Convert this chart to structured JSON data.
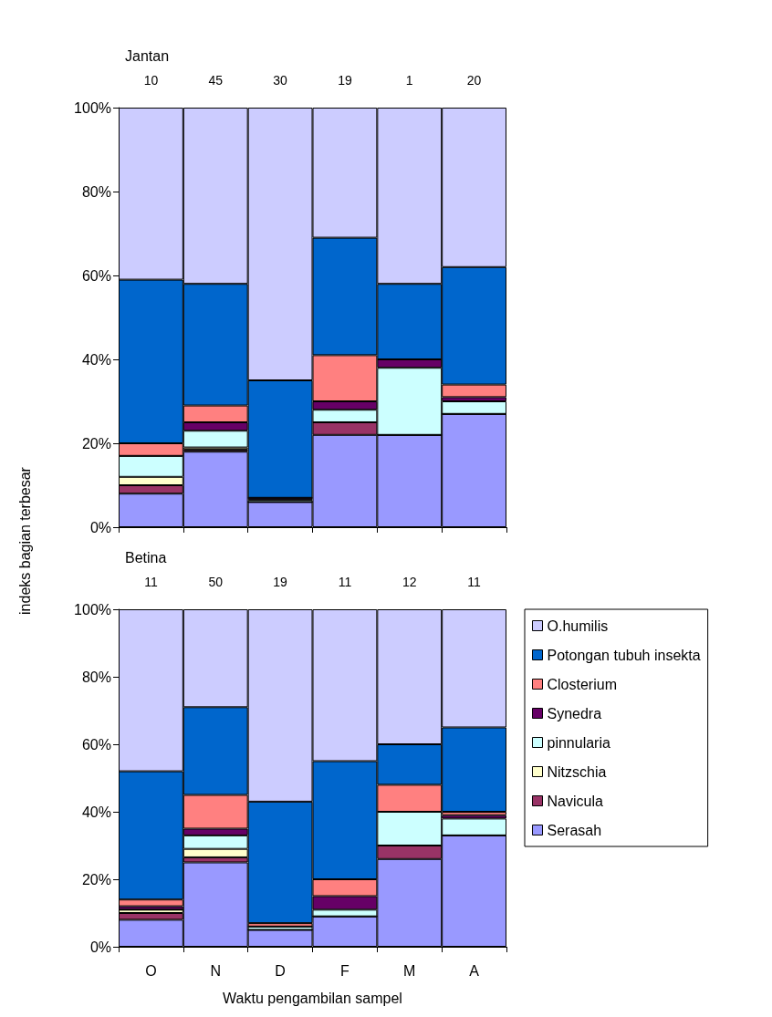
{
  "chart_data": [
    {
      "type": "bar",
      "title": "Jantan",
      "stacked": true,
      "grid": false,
      "legend": false,
      "tick_labels": "y",
      "categories": [
        null,
        null,
        null,
        null,
        null,
        null
      ],
      "ylim": [
        0,
        100
      ],
      "yticks": [
        {
          "value": 0,
          "label": "0%"
        },
        {
          "value": 20,
          "label": "20%"
        },
        {
          "value": 40,
          "label": "40%"
        },
        {
          "value": 60,
          "label": "60%"
        },
        {
          "value": 80,
          "label": "80%"
        },
        {
          "value": 100,
          "label": "100%"
        }
      ],
      "annotations": [
        "10",
        "45",
        "30",
        "19",
        "1",
        "20"
      ],
      "series": [
        {
          "color": "#9999ff",
          "values": [
            8,
            18,
            6,
            22,
            22,
            27
          ]
        },
        {
          "color": "#993366",
          "values": [
            2,
            0.5,
            0,
            3,
            0,
            0
          ]
        },
        {
          "color": "#ffffcc",
          "values": [
            2,
            0.5,
            0,
            0,
            0,
            0
          ]
        },
        {
          "color": "#ccffff",
          "values": [
            5,
            4,
            0.5,
            3,
            16,
            3
          ]
        },
        {
          "color": "#660066",
          "values": [
            0,
            2,
            0.5,
            2,
            2,
            1
          ]
        },
        {
          "color": "#ff8080",
          "values": [
            3,
            4,
            0,
            11,
            0,
            3
          ]
        },
        {
          "color": "#0066cc",
          "values": [
            39,
            29,
            28,
            28,
            18,
            28
          ]
        },
        {
          "color": "#ccccff",
          "values": [
            41,
            42,
            65,
            31,
            42,
            38
          ]
        }
      ]
    },
    {
      "type": "bar",
      "title": "Betina",
      "stacked": true,
      "grid": false,
      "legend": "right",
      "xlabel": "Waktu pengambilan sampel",
      "ylabel": "indeks bagian terbesar",
      "categories": [
        "O",
        "N",
        "D",
        "F",
        "M",
        "A"
      ],
      "ylim": [
        0,
        100
      ],
      "yticks": [
        {
          "value": 0,
          "label": "0%"
        },
        {
          "value": 20,
          "label": "20%"
        },
        {
          "value": 40,
          "label": "40%"
        },
        {
          "value": 60,
          "label": "60%"
        },
        {
          "value": 80,
          "label": "80%"
        },
        {
          "value": 100,
          "label": "100%"
        }
      ],
      "annotations": [
        "11",
        "50",
        "19",
        "11",
        "12",
        "11"
      ],
      "series": [
        {
          "name": "Serasah",
          "color": "#9999ff",
          "values": [
            8,
            25,
            5,
            9,
            26,
            33
          ]
        },
        {
          "name": "Navicula",
          "color": "#993366",
          "values": [
            2,
            1.5,
            0,
            0,
            4,
            0
          ]
        },
        {
          "name": "Nitzschia",
          "color": "#ffffcc",
          "values": [
            1,
            2.5,
            0,
            0,
            0,
            0
          ]
        },
        {
          "name": "pinnularia",
          "color": "#ccffff",
          "values": [
            0,
            4,
            1,
            2,
            10,
            5
          ]
        },
        {
          "name": "Synedra",
          "color": "#660066",
          "values": [
            1,
            2,
            0,
            4,
            0,
            1
          ]
        },
        {
          "name": "Closterium",
          "color": "#ff8080",
          "values": [
            2,
            10,
            1,
            5,
            8,
            1
          ]
        },
        {
          "name": "Potongan tubuh insekta",
          "color": "#0066cc",
          "values": [
            38,
            26,
            36,
            35,
            12,
            25
          ]
        },
        {
          "name": "O.humilis",
          "color": "#ccccff",
          "values": [
            48,
            29,
            57,
            45,
            40,
            35
          ]
        }
      ]
    }
  ]
}
